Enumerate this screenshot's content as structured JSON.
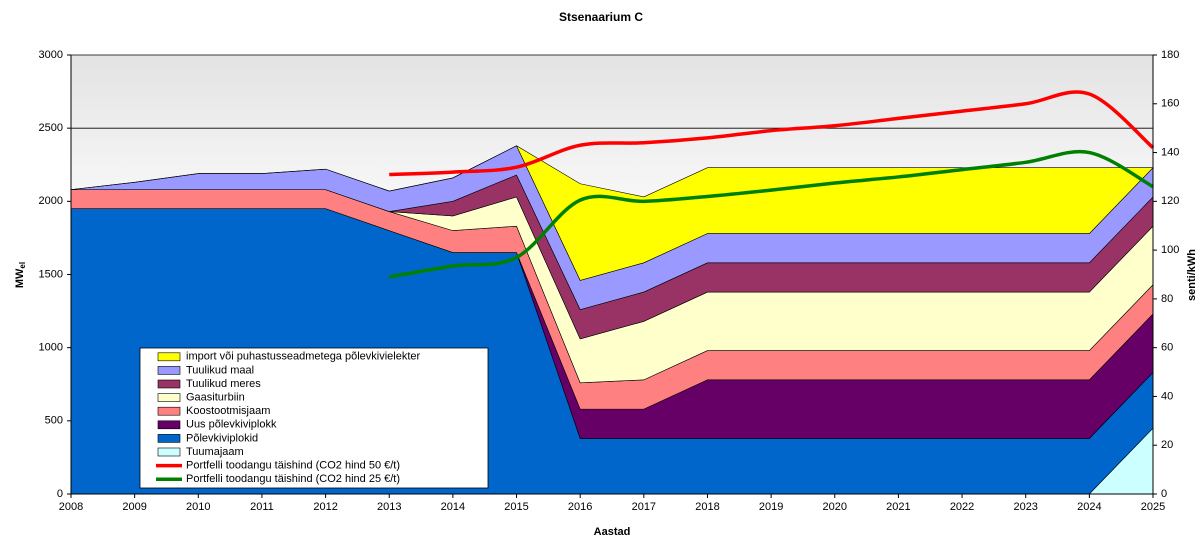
{
  "chart_data": {
    "type": "stacked-area-line",
    "title": "Stsenaarium C",
    "x_label": "Aastad",
    "y_label": {
      "text": "MW",
      "subscript": "el"
    },
    "y2_label": "senti/kWh",
    "x": [
      2008,
      2009,
      2010,
      2011,
      2012,
      2013,
      2014,
      2015,
      2016,
      2017,
      2018,
      2019,
      2020,
      2021,
      2022,
      2023,
      2024,
      2025
    ],
    "xlim": [
      2008,
      2025
    ],
    "xticks": [
      2008,
      2009,
      2010,
      2011,
      2012,
      2013,
      2014,
      2015,
      2016,
      2017,
      2018,
      2019,
      2020,
      2021,
      2022,
      2023,
      2024,
      2025
    ],
    "ylim": [
      0,
      3000
    ],
    "yticks": [
      0,
      500,
      1000,
      1500,
      2000,
      2500,
      3000
    ],
    "y2lim": [
      0,
      180
    ],
    "y2ticks": [
      0,
      20,
      40,
      60,
      80,
      100,
      120,
      140,
      160,
      180
    ],
    "grid": true,
    "series": [
      {
        "name": "Tuumajaam",
        "kind": "area",
        "color": "#ccffff",
        "values": [
          0,
          0,
          0,
          0,
          0,
          0,
          0,
          0,
          0,
          0,
          0,
          0,
          0,
          0,
          0,
          0,
          0,
          450
        ]
      },
      {
        "name": "Põlevkiviplokid",
        "kind": "area",
        "color": "#0066cc",
        "values": [
          1950,
          1950,
          1950,
          1950,
          1950,
          1800,
          1650,
          1650,
          380,
          380,
          380,
          380,
          380,
          380,
          380,
          380,
          380,
          380
        ]
      },
      {
        "name": "Uus põlevkiviplokk",
        "kind": "area",
        "color": "#660066",
        "values": [
          0,
          0,
          0,
          0,
          0,
          0,
          0,
          0,
          200,
          200,
          400,
          400,
          400,
          400,
          400,
          400,
          400,
          400
        ]
      },
      {
        "name": "Koostootmisjaam",
        "kind": "area",
        "color": "#ff8080",
        "values": [
          130,
          130,
          130,
          130,
          130,
          130,
          150,
          180,
          180,
          200,
          200,
          200,
          200,
          200,
          200,
          200,
          200,
          200
        ]
      },
      {
        "name": "Gaasiturbiin",
        "kind": "area",
        "color": "#ffffcc",
        "values": [
          0,
          0,
          0,
          0,
          0,
          0,
          100,
          200,
          300,
          400,
          400,
          400,
          400,
          400,
          400,
          400,
          400,
          400
        ]
      },
      {
        "name": "Tuulikud meres",
        "kind": "area",
        "color": "#993366",
        "values": [
          0,
          0,
          0,
          0,
          0,
          0,
          100,
          150,
          200,
          200,
          200,
          200,
          200,
          200,
          200,
          200,
          200,
          200
        ]
      },
      {
        "name": "Tuulikud maal",
        "kind": "area",
        "color": "#9999ff",
        "values": [
          0,
          50,
          110,
          110,
          140,
          140,
          160,
          200,
          200,
          200,
          200,
          200,
          200,
          200,
          200,
          200,
          200,
          200
        ]
      },
      {
        "name": "import või puhastusseadmetega põlevkivielekter",
        "kind": "area",
        "color": "#ffff00",
        "values": [
          0,
          0,
          0,
          0,
          0,
          0,
          0,
          0,
          660,
          450,
          450,
          450,
          450,
          450,
          450,
          450,
          450,
          0
        ]
      },
      {
        "name": "Portfelli toodangu täishind (CO2 hind 50 €/t)",
        "kind": "line",
        "axis": "y2",
        "color": "#ff0000",
        "values": [
          null,
          null,
          null,
          null,
          null,
          131,
          132,
          134,
          143,
          144,
          146,
          149,
          151,
          154,
          157,
          160,
          164,
          142
        ]
      },
      {
        "name": "Portfelli toodangu täishind (CO2 hind 25 €/t)",
        "kind": "line",
        "axis": "y2",
        "color": "#008000",
        "values": [
          null,
          null,
          null,
          null,
          null,
          89,
          93.5,
          97,
          120.5,
          120,
          122,
          124.6,
          127.5,
          130,
          133,
          136,
          140,
          126
        ]
      }
    ]
  }
}
